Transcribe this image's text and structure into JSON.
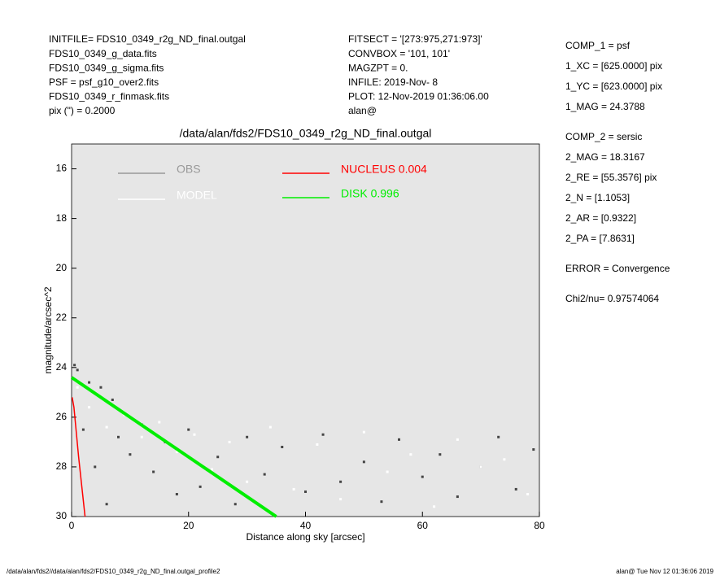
{
  "header": {
    "left": [
      "INITFILE= FDS10_0349_r2g_ND_final.outgal",
      "FDS10_0349_g_data.fits",
      "FDS10_0349_g_sigma.fits",
      "PSF    = psf_g10_over2.fits",
      "FDS10_0349_r_finmask.fits",
      "pix (\") =  0.2000"
    ],
    "middle": [
      "FITSECT = '[273:975,271:973]'",
      "CONVBOX = '101, 101'",
      "MAGZPT  =              0.",
      "INFILE: 2019-Nov- 8",
      "PLOT: 12-Nov-2019 01:36:06.00",
      "alan@"
    ],
    "right": [
      "COMP_1  = psf",
      "1_XC    = [625.0000] pix",
      "1_YC    = [623.0000] pix",
      "1_MAG   = 24.3788",
      "COMP_2  = sersic",
      "2_MAG   = 18.3167",
      "2_RE    = [55.3576] pix",
      "2_N     = [1.1053]",
      "2_AR    = [0.9322]",
      "2_PA    = [7.8631]",
      "ERROR   = Convergence",
      "Chi2/nu=      0.97574064"
    ]
  },
  "footer": {
    "left": "/data/alan/fds2//data/alan/fds2/FDS10_0349_r2g_ND_final.outgal_profile2",
    "right": "alan@  Tue Nov 12 01:36:06 2019"
  },
  "chart_data": {
    "type": "scatter",
    "title": "/data/alan/fds2/FDS10_0349_r2g_ND_final.outgal",
    "x_label": "Distance along sky [arcsec]",
    "y_label": "magnitude/arcsec^2",
    "xlim": [
      0,
      80
    ],
    "xticks": [
      0,
      20,
      40,
      60,
      80
    ],
    "ylim": [
      15,
      30
    ],
    "yticks": [
      16,
      18,
      20,
      22,
      24,
      26,
      28,
      30
    ],
    "y_inverted": true,
    "grid": false,
    "background": "#e6e6e6",
    "series": [
      {
        "name": "OBS",
        "color": "#444444",
        "legend_color": "#999999",
        "kind": "points",
        "x": [
          0.5,
          1,
          2,
          3,
          4,
          5,
          6,
          7,
          8,
          10,
          12,
          14,
          16,
          18,
          20,
          22,
          25,
          28,
          30,
          33,
          36,
          40,
          43,
          46,
          50,
          53,
          56,
          60,
          63,
          66,
          70,
          73,
          76,
          79
        ],
        "values": [
          23.9,
          24.1,
          26.5,
          24.6,
          28,
          24.8,
          29.5,
          25.3,
          26.8,
          27.5,
          26.3,
          28.2,
          27,
          29.1,
          26.5,
          28.8,
          27.6,
          29.5,
          26.8,
          28.3,
          27.2,
          29,
          26.7,
          28.6,
          27.8,
          29.4,
          26.9,
          28.4,
          27.5,
          29.2,
          28,
          26.8,
          28.9,
          27.3
        ]
      },
      {
        "name": "MODEL",
        "color": "#ffffff",
        "legend_color": "#ffffff",
        "kind": "points",
        "x": [
          1,
          3,
          6,
          9,
          12,
          15,
          18,
          21,
          24,
          27,
          30,
          34,
          38,
          42,
          46,
          50,
          54,
          58,
          62,
          66,
          70,
          74,
          78
        ],
        "values": [
          24.8,
          25.6,
          26.4,
          25.9,
          26.8,
          26.2,
          27.4,
          26.7,
          28.1,
          27,
          28.6,
          26.4,
          28.9,
          27.1,
          29.3,
          26.6,
          28.2,
          27.5,
          29.6,
          26.9,
          28,
          27.7,
          29.1
        ]
      },
      {
        "name": "NUCLEUS  0.004",
        "color": "#ff0000",
        "legend_color": "#ff0000",
        "kind": "line",
        "x": [
          0.1,
          0.4,
          1.2,
          2.3
        ],
        "values": [
          25.2,
          25.6,
          27.6,
          30
        ]
      },
      {
        "name": "DISK  0.996",
        "color": "#00ee00",
        "legend_color": "#00ee00",
        "kind": "band",
        "x": [
          0,
          10,
          20,
          30,
          35
        ],
        "values": [
          24.4,
          26.0,
          27.6,
          29.2,
          30
        ]
      }
    ]
  }
}
